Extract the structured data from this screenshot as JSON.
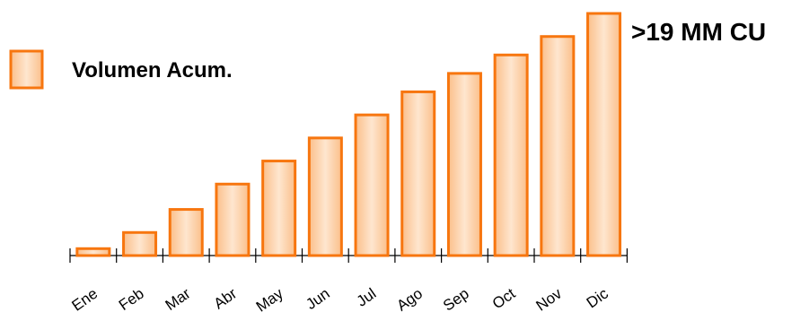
{
  "chart_data": {
    "type": "bar",
    "categories": [
      "Ene",
      "Feb",
      "Mar",
      "Abr",
      "May",
      "Jun",
      "Jul",
      "Ago",
      "Sep",
      "Oct",
      "Nov",
      "Dic"
    ],
    "series": [
      {
        "name": "Volumen Acum.",
        "values": [
          0.3,
          1.0,
          2.0,
          3.1,
          4.1,
          5.1,
          6.1,
          7.1,
          7.9,
          8.7,
          9.5,
          10.5
        ]
      }
    ],
    "annotation": ">19 MM CU",
    "ylim": [
      0,
      10.5
    ],
    "grid": false,
    "legend_position": "top-left",
    "colors": {
      "bar_fill_edge": "#fbbf8a",
      "bar_fill_center": "#fee6cf",
      "bar_stroke": "#f7760f",
      "axis": "#000000"
    }
  }
}
